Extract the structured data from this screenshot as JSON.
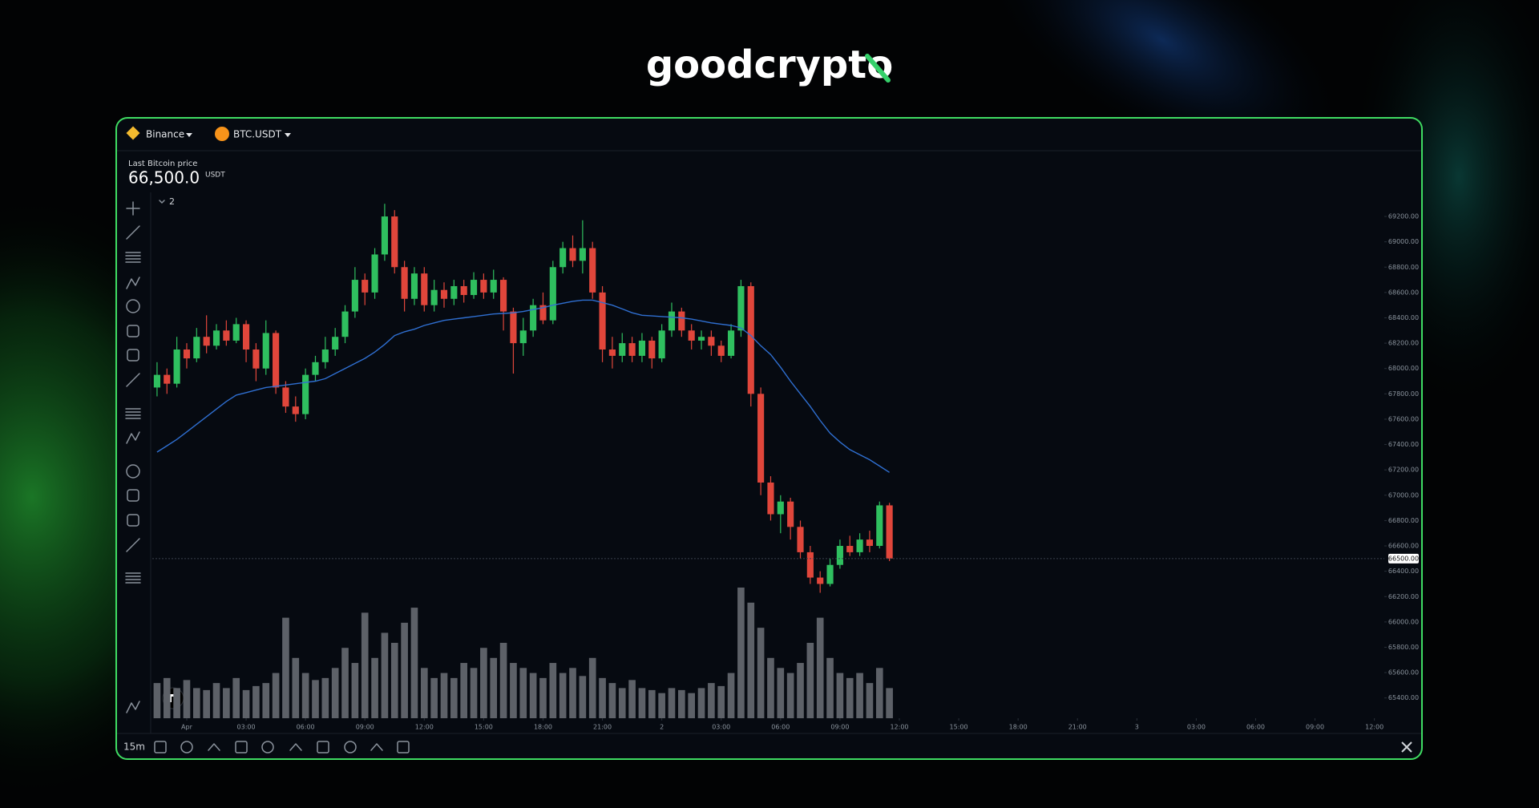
{
  "logo": "goodcrypto",
  "exchange": "Binance",
  "pair": "BTC.USDT",
  "price_caption": "Last Bitcoin price",
  "price": "66,500.0",
  "price_unit": "USDT",
  "indicator_count": "2",
  "interval": "15m",
  "chart_data": {
    "type": "candlestick",
    "up_color": "#2fbf5f",
    "down_color": "#e0463b",
    "ma_color": "#2f6fd1",
    "volume_color": "#5d6168",
    "grid": false,
    "x": [
      -1.5,
      -1,
      -0.5,
      0,
      0.5,
      1,
      1.5,
      2,
      2.5,
      3,
      3.5,
      4,
      4.5,
      5,
      5.5,
      6,
      6.5,
      7,
      7.5,
      8,
      8.5,
      9,
      9.5,
      10,
      10.5,
      11,
      11.5,
      12,
      12.5,
      13,
      13.5,
      14,
      14.5,
      15,
      15.5,
      16,
      16.5,
      17,
      17.5,
      18,
      18.5,
      19,
      19.5,
      20,
      20.5,
      21,
      21.5,
      22,
      22.5,
      23,
      23.5,
      24,
      24.5,
      25,
      25.5,
      26,
      26.5,
      27,
      27.5,
      28,
      28.5,
      29,
      29.5,
      30,
      30.5,
      31,
      31.5,
      32,
      32.5,
      33,
      33.5,
      34,
      34.5,
      35,
      35.5
    ],
    "open": [
      67850,
      67950,
      67880,
      68150,
      68080,
      68250,
      68180,
      68300,
      68220,
      68350,
      68150,
      68000,
      68280,
      67850,
      67700,
      67640,
      67950,
      68050,
      68150,
      68250,
      68450,
      68700,
      68600,
      68900,
      69200,
      68800,
      68550,
      68750,
      68500,
      68620,
      68550,
      68650,
      68580,
      68700,
      68600,
      68700,
      68450,
      68200,
      68300,
      68500,
      68380,
      68800,
      68950,
      68850,
      68950,
      68600,
      68150,
      68100,
      68200,
      68100,
      68220,
      68080,
      68300,
      68450,
      68300,
      68220,
      68250,
      68180,
      68100,
      68300,
      68650,
      67800,
      67100,
      66850,
      66950,
      66750,
      66550,
      66350,
      66300,
      66450,
      66600,
      66550,
      66650,
      66600,
      66920
    ],
    "high": [
      68050,
      68000,
      68250,
      68200,
      68320,
      68420,
      68350,
      68380,
      68400,
      68380,
      68200,
      68380,
      68300,
      67900,
      67780,
      68000,
      68100,
      68250,
      68320,
      68500,
      68800,
      68750,
      68950,
      69300,
      69250,
      68850,
      68800,
      68800,
      68700,
      68680,
      68700,
      68700,
      68760,
      68750,
      68780,
      68720,
      68480,
      68400,
      68550,
      68600,
      68850,
      69000,
      69050,
      69170,
      69000,
      68650,
      68250,
      68280,
      68250,
      68280,
      68250,
      68350,
      68520,
      68480,
      68350,
      68300,
      68300,
      68220,
      68350,
      68700,
      68680,
      67850,
      67150,
      67000,
      66980,
      66800,
      66600,
      66400,
      66500,
      66650,
      66680,
      66700,
      66720,
      66950,
      66940
    ],
    "low": [
      67780,
      67800,
      67850,
      68000,
      68050,
      68120,
      68150,
      68180,
      68200,
      68050,
      67900,
      67950,
      67800,
      67650,
      67580,
      67600,
      67900,
      68000,
      68100,
      68200,
      68400,
      68500,
      68550,
      68850,
      68750,
      68450,
      68500,
      68450,
      68450,
      68480,
      68500,
      68520,
      68550,
      68550,
      68550,
      68300,
      67960,
      68100,
      68250,
      68350,
      68350,
      68750,
      68800,
      68750,
      68550,
      68050,
      68000,
      68050,
      68050,
      68050,
      68000,
      68050,
      68250,
      68250,
      68150,
      68150,
      68100,
      68050,
      68080,
      68250,
      67700,
      67000,
      66800,
      66700,
      66650,
      66500,
      66300,
      66230,
      66280,
      66420,
      66520,
      66520,
      66550,
      66580,
      66480
    ],
    "close": [
      67950,
      67880,
      68150,
      68080,
      68250,
      68180,
      68300,
      68220,
      68350,
      68150,
      68000,
      68280,
      67850,
      67700,
      67640,
      67950,
      68050,
      68150,
      68250,
      68450,
      68700,
      68600,
      68900,
      69200,
      68800,
      68550,
      68750,
      68500,
      68620,
      68550,
      68650,
      68580,
      68700,
      68600,
      68700,
      68450,
      68200,
      68300,
      68500,
      68380,
      68800,
      68950,
      68850,
      68950,
      68600,
      68150,
      68100,
      68200,
      68100,
      68220,
      68080,
      68300,
      68450,
      68300,
      68220,
      68250,
      68180,
      68100,
      68300,
      68650,
      67800,
      67100,
      66850,
      66950,
      66750,
      66550,
      66350,
      66300,
      66450,
      66600,
      66550,
      66650,
      66600,
      66920,
      66500
    ],
    "volume": [
      35,
      40,
      30,
      38,
      30,
      28,
      35,
      30,
      40,
      28,
      32,
      35,
      45,
      100,
      60,
      45,
      38,
      40,
      50,
      70,
      55,
      105,
      60,
      85,
      75,
      95,
      110,
      50,
      40,
      45,
      40,
      55,
      50,
      70,
      60,
      75,
      55,
      50,
      45,
      40,
      55,
      45,
      50,
      42,
      60,
      40,
      35,
      30,
      38,
      30,
      28,
      25,
      30,
      28,
      25,
      30,
      35,
      32,
      45,
      130,
      115,
      90,
      60,
      50,
      45,
      55,
      75,
      100,
      60,
      45,
      40,
      45,
      35,
      50,
      30
    ],
    "ma": [
      67340,
      67390,
      67440,
      67500,
      67560,
      67620,
      67680,
      67740,
      67790,
      67810,
      67830,
      67850,
      67860,
      67870,
      67880,
      67890,
      67900,
      67920,
      67960,
      68000,
      68040,
      68080,
      68130,
      68190,
      68260,
      68290,
      68310,
      68340,
      68360,
      68380,
      68390,
      68400,
      68410,
      68420,
      68430,
      68435,
      68440,
      68450,
      68465,
      68480,
      68500,
      68515,
      68530,
      68540,
      68540,
      68520,
      68500,
      68470,
      68440,
      68420,
      68415,
      68410,
      68405,
      68400,
      68390,
      68375,
      68360,
      68350,
      68340,
      68320,
      68260,
      68180,
      68110,
      68010,
      67900,
      67800,
      67700,
      67590,
      67490,
      67420,
      67360,
      67320,
      67280,
      67230,
      67180
    ],
    "last_price": {
      "value": 66500,
      "label": "66500.00"
    },
    "xlim": [
      -1.74,
      60.5
    ],
    "ylim": [
      65240,
      69390
    ],
    "xticks": [
      {
        "value": 0,
        "label": "Apr"
      },
      {
        "value": 3,
        "label": "03:00"
      },
      {
        "value": 6,
        "label": "06:00"
      },
      {
        "value": 9,
        "label": "09:00"
      },
      {
        "value": 12,
        "label": "12:00"
      },
      {
        "value": 15,
        "label": "15:00"
      },
      {
        "value": 18,
        "label": "18:00"
      },
      {
        "value": 21,
        "label": "21:00"
      },
      {
        "value": 24,
        "label": "2"
      },
      {
        "value": 27,
        "label": "03:00"
      },
      {
        "value": 30,
        "label": "06:00"
      },
      {
        "value": 33,
        "label": "09:00"
      },
      {
        "value": 36,
        "label": "12:00"
      },
      {
        "value": 39,
        "label": "15:00"
      },
      {
        "value": 42,
        "label": "18:00"
      },
      {
        "value": 45,
        "label": "21:00"
      },
      {
        "value": 48,
        "label": "3"
      },
      {
        "value": 51,
        "label": "03:00"
      },
      {
        "value": 54,
        "label": "06:00"
      },
      {
        "value": 57,
        "label": "09:00"
      },
      {
        "value": 60,
        "label": "12:00"
      }
    ],
    "yticks": [
      {
        "value": 65400,
        "label": "65400.00"
      },
      {
        "value": 65600,
        "label": "65600.00"
      },
      {
        "value": 65800,
        "label": "65800.00"
      },
      {
        "value": 66000,
        "label": "66000.00"
      },
      {
        "value": 66200,
        "label": "66200.00"
      },
      {
        "value": 66400,
        "label": "66400.00"
      },
      {
        "value": 66600,
        "label": "66600.00"
      },
      {
        "value": 66800,
        "label": "66800.00"
      },
      {
        "value": 67000,
        "label": "67000.00"
      },
      {
        "value": 67200,
        "label": "67200.00"
      },
      {
        "value": 67400,
        "label": "67400.00"
      },
      {
        "value": 67600,
        "label": "67600.00"
      },
      {
        "value": 67800,
        "label": "67800.00"
      },
      {
        "value": 68000,
        "label": "68000.00"
      },
      {
        "value": 68200,
        "label": "68200.00"
      },
      {
        "value": 68400,
        "label": "68400.00"
      },
      {
        "value": 68600,
        "label": "68600.00"
      },
      {
        "value": 68800,
        "label": "68800.00"
      },
      {
        "value": 69000,
        "label": "69000.00"
      },
      {
        "value": 69200,
        "label": "69200.00"
      }
    ]
  }
}
